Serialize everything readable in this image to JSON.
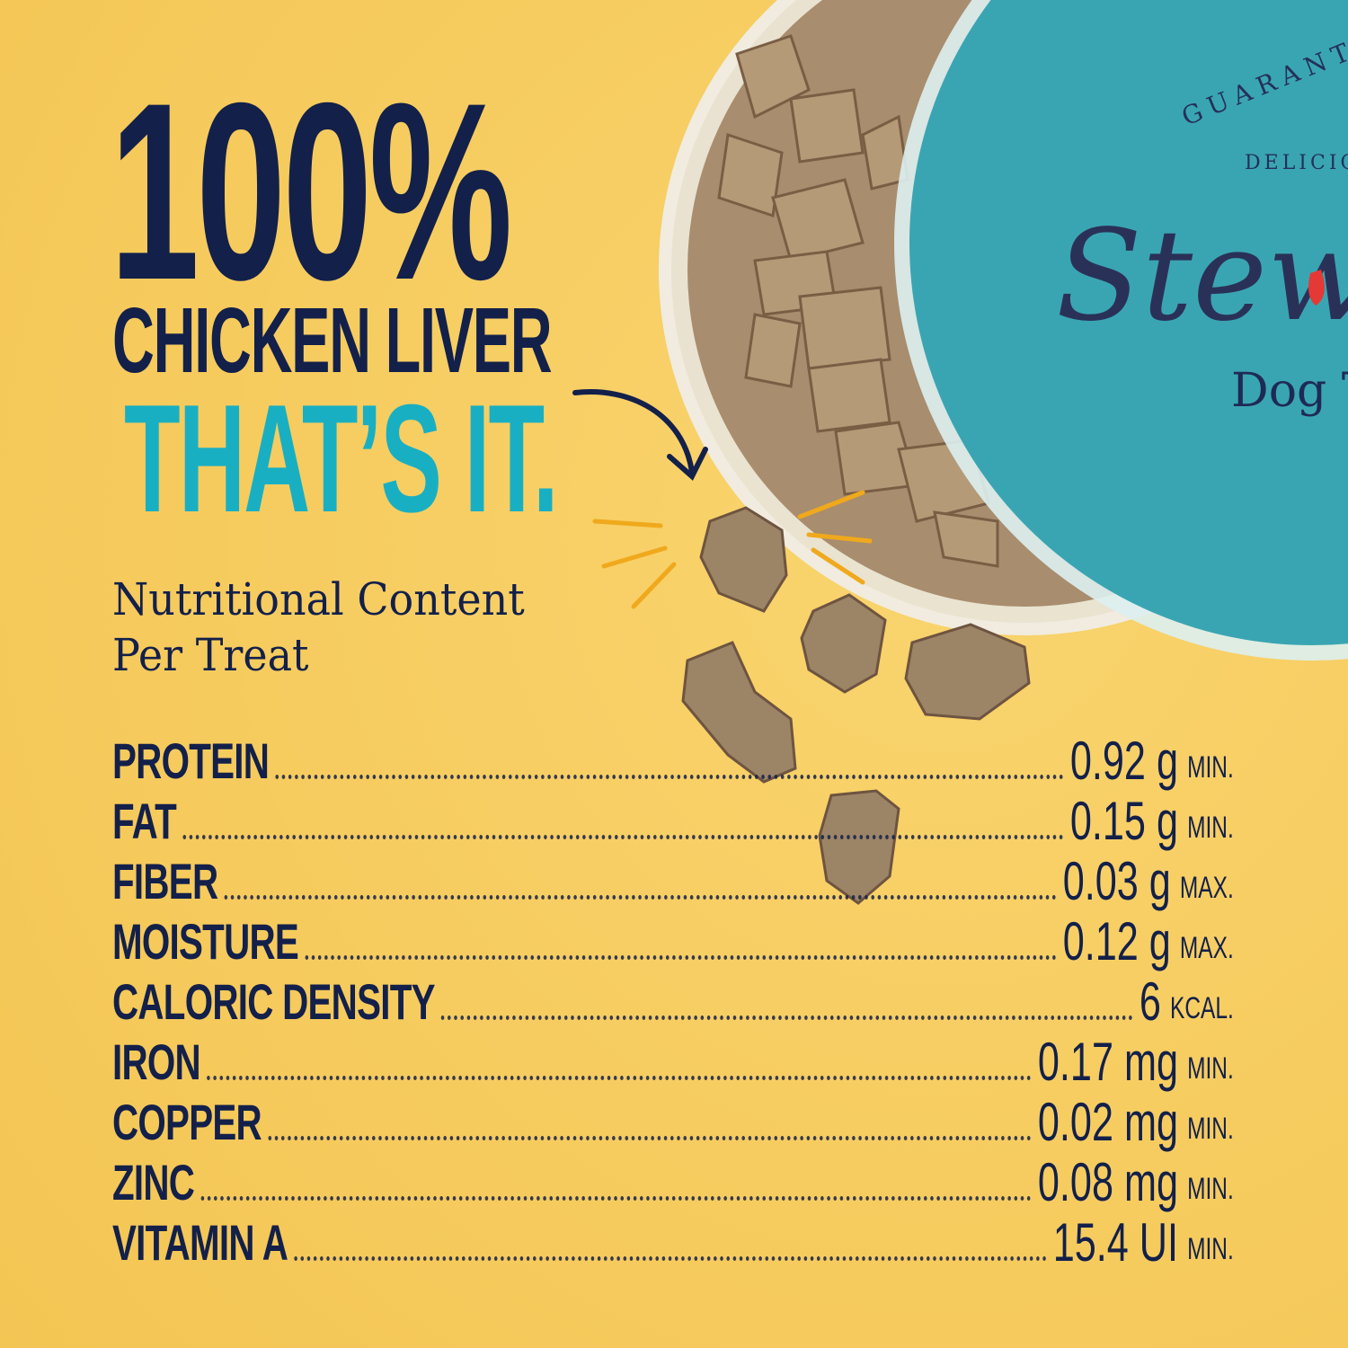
{
  "headline": {
    "line1": "100%",
    "line2": "CHICKEN LIVER",
    "line3": "THAT’S IT."
  },
  "subheading": {
    "line1": "Nutritional Content",
    "line2": "Per Treat"
  },
  "nutrients": [
    {
      "label": "PROTEIN",
      "value": "0.92 g",
      "qualifier": "MIN."
    },
    {
      "label": "FAT",
      "value": "0.15 g",
      "qualifier": "MIN."
    },
    {
      "label": "FIBER",
      "value": "0.03 g",
      "qualifier": "MAX."
    },
    {
      "label": "MOISTURE",
      "value": "0.12 g",
      "qualifier": "MAX."
    },
    {
      "label": "CALORIC DENSITY",
      "value": "6",
      "qualifier": "KCAL."
    },
    {
      "label": "IRON",
      "value": "0.17 mg",
      "qualifier": "MIN."
    },
    {
      "label": "COPPER",
      "value": "0.02 mg",
      "qualifier": "MIN."
    },
    {
      "label": "ZINC",
      "value": "0.08 mg",
      "qualifier": "MIN."
    },
    {
      "label": "VITAMIN A",
      "value": "15.4 UI",
      "qualifier": "MIN."
    }
  ],
  "lid": {
    "arc_text": "GUARANT",
    "arc_text2": "DELICIOU",
    "brand": "Stew",
    "product": "Dog T"
  },
  "colors": {
    "background": "#F7CE63",
    "navy": "#13204A",
    "teal": "#19AFC3",
    "lid": "#3AA5B2",
    "accent_red": "#E53935"
  }
}
